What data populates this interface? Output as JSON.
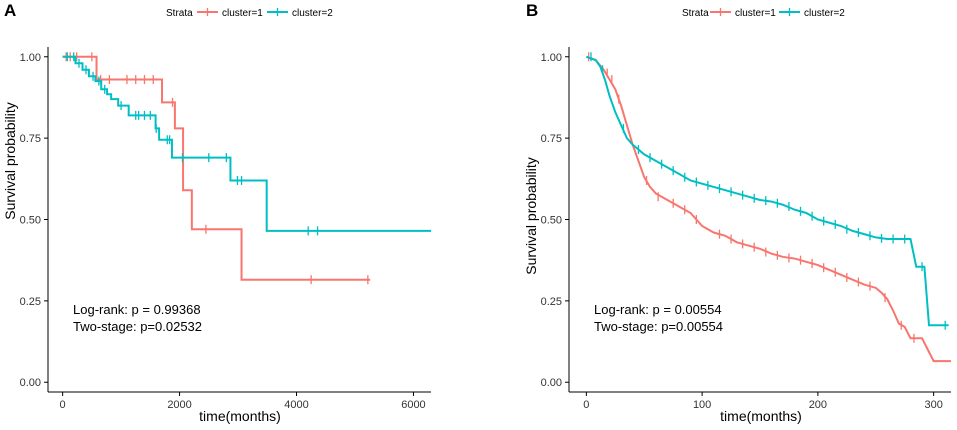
{
  "colors": {
    "cluster1": "#F8766D",
    "cluster2": "#00BFC4"
  },
  "chart_data": [
    {
      "type": "line",
      "subtype": "kaplan-meier",
      "panel_label": "A",
      "legend": {
        "title": "Strata",
        "entries": [
          "cluster=1",
          "cluster=2"
        ],
        "position": "top"
      },
      "xlabel": "time(months)",
      "ylabel": "Survival probability",
      "xlim": [
        -250,
        6300
      ],
      "ylim": [
        -0.03,
        1.03
      ],
      "xticks": [
        0,
        2000,
        4000,
        6000
      ],
      "xtick_labels": [
        "0",
        "2000",
        "4000",
        "6000"
      ],
      "yticks": [
        0,
        0.25,
        0.5,
        0.75,
        1
      ],
      "ytick_labels": [
        "0.00",
        "0.25",
        "0.50",
        "0.75",
        "1.00"
      ],
      "annotations": [
        "Log-rank: p = 0.99368",
        "Two-stage: p=0.02532"
      ],
      "series": [
        {
          "name": "cluster=1",
          "color_key": "cluster1",
          "steps": [
            [
              0,
              1.0
            ],
            [
              580,
              0.93
            ],
            [
              1700,
              0.86
            ],
            [
              1920,
              0.78
            ],
            [
              2060,
              0.59
            ],
            [
              2210,
              0.47
            ],
            [
              3060,
              0.315
            ],
            [
              5260,
              0.315
            ]
          ],
          "censored": [
            [
              60,
              1.0
            ],
            [
              130,
              1.0
            ],
            [
              240,
              1.0
            ],
            [
              500,
              1.0
            ],
            [
              650,
              0.93
            ],
            [
              800,
              0.93
            ],
            [
              1100,
              0.93
            ],
            [
              1250,
              0.93
            ],
            [
              1400,
              0.93
            ],
            [
              1550,
              0.93
            ],
            [
              1880,
              0.86
            ],
            [
              2450,
              0.47
            ],
            [
              4250,
              0.315
            ],
            [
              5220,
              0.315
            ]
          ]
        },
        {
          "name": "cluster=2",
          "color_key": "cluster2",
          "steps": [
            [
              0,
              1.0
            ],
            [
              220,
              0.98
            ],
            [
              340,
              0.96
            ],
            [
              450,
              0.94
            ],
            [
              560,
              0.925
            ],
            [
              660,
              0.9
            ],
            [
              760,
              0.885
            ],
            [
              830,
              0.87
            ],
            [
              950,
              0.85
            ],
            [
              1130,
              0.82
            ],
            [
              1590,
              0.78
            ],
            [
              1650,
              0.745
            ],
            [
              1870,
              0.69
            ],
            [
              2870,
              0.62
            ],
            [
              3490,
              0.465
            ],
            [
              6300,
              0.465
            ]
          ],
          "censored": [
            [
              80,
              1.0
            ],
            [
              190,
              1.0
            ],
            [
              280,
              0.98
            ],
            [
              400,
              0.96
            ],
            [
              520,
              0.94
            ],
            [
              620,
              0.925
            ],
            [
              720,
              0.9
            ],
            [
              1000,
              0.85
            ],
            [
              1250,
              0.82
            ],
            [
              1300,
              0.82
            ],
            [
              1400,
              0.82
            ],
            [
              1500,
              0.82
            ],
            [
              1600,
              0.78
            ],
            [
              1790,
              0.745
            ],
            [
              1830,
              0.745
            ],
            [
              2050,
              0.69
            ],
            [
              2500,
              0.69
            ],
            [
              2800,
              0.69
            ],
            [
              2990,
              0.62
            ],
            [
              3060,
              0.62
            ],
            [
              4200,
              0.465
            ],
            [
              4360,
              0.465
            ]
          ]
        }
      ]
    },
    {
      "type": "line",
      "subtype": "kaplan-meier",
      "panel_label": "B",
      "legend": {
        "title": "Strata",
        "entries": [
          "cluster=1",
          "cluster=2"
        ],
        "position": "top"
      },
      "xlabel": "time(months)",
      "ylabel": "Survival probability",
      "xlim": [
        -15,
        315
      ],
      "ylim": [
        -0.03,
        1.03
      ],
      "xticks": [
        0,
        100,
        200,
        300
      ],
      "xtick_labels": [
        "0",
        "100",
        "200",
        "300"
      ],
      "yticks": [
        0,
        0.25,
        0.5,
        0.75,
        1
      ],
      "ytick_labels": [
        "0.00",
        "0.25",
        "0.50",
        "0.75",
        "1.00"
      ],
      "annotations": [
        "Log-rank: p = 0.00554",
        "Two-stage: p=0.00554"
      ],
      "series": [
        {
          "name": "cluster=1",
          "color_key": "cluster1",
          "points": [
            [
              0,
              1.0
            ],
            [
              8,
              0.99
            ],
            [
              15,
              0.96
            ],
            [
              20,
              0.93
            ],
            [
              25,
              0.9
            ],
            [
              30,
              0.85
            ],
            [
              35,
              0.79
            ],
            [
              40,
              0.73
            ],
            [
              45,
              0.68
            ],
            [
              50,
              0.63
            ],
            [
              55,
              0.6
            ],
            [
              60,
              0.58
            ],
            [
              70,
              0.56
            ],
            [
              80,
              0.54
            ],
            [
              90,
              0.52
            ],
            [
              100,
              0.48
            ],
            [
              110,
              0.46
            ],
            [
              120,
              0.45
            ],
            [
              130,
              0.43
            ],
            [
              140,
              0.42
            ],
            [
              150,
              0.41
            ],
            [
              160,
              0.395
            ],
            [
              170,
              0.385
            ],
            [
              180,
              0.38
            ],
            [
              190,
              0.37
            ],
            [
              200,
              0.36
            ],
            [
              210,
              0.345
            ],
            [
              220,
              0.33
            ],
            [
              230,
              0.315
            ],
            [
              240,
              0.3
            ],
            [
              250,
              0.29
            ],
            [
              255,
              0.275
            ],
            [
              260,
              0.255
            ],
            [
              265,
              0.22
            ],
            [
              270,
              0.18
            ],
            [
              275,
              0.17
            ],
            [
              280,
              0.135
            ],
            [
              290,
              0.135
            ],
            [
              300,
              0.065
            ],
            [
              315,
              0.065
            ]
          ],
          "censored": [
            [
              2,
              1.0
            ],
            [
              18,
              0.95
            ],
            [
              22,
              0.93
            ],
            [
              28,
              0.87
            ],
            [
              52,
              0.62
            ],
            [
              62,
              0.57
            ],
            [
              75,
              0.55
            ],
            [
              85,
              0.53
            ],
            [
              95,
              0.5
            ],
            [
              115,
              0.455
            ],
            [
              125,
              0.44
            ],
            [
              135,
              0.425
            ],
            [
              145,
              0.415
            ],
            [
              155,
              0.4
            ],
            [
              165,
              0.39
            ],
            [
              175,
              0.382
            ],
            [
              185,
              0.375
            ],
            [
              195,
              0.365
            ],
            [
              205,
              0.352
            ],
            [
              215,
              0.338
            ],
            [
              225,
              0.322
            ],
            [
              235,
              0.308
            ],
            [
              245,
              0.295
            ],
            [
              258,
              0.26
            ],
            [
              272,
              0.175
            ],
            [
              283,
              0.135
            ]
          ]
        },
        {
          "name": "cluster=2",
          "color_key": "cluster2",
          "points": [
            [
              0,
              1.0
            ],
            [
              8,
              0.99
            ],
            [
              12,
              0.97
            ],
            [
              16,
              0.93
            ],
            [
              20,
              0.88
            ],
            [
              25,
              0.83
            ],
            [
              30,
              0.79
            ],
            [
              35,
              0.75
            ],
            [
              40,
              0.73
            ],
            [
              50,
              0.7
            ],
            [
              60,
              0.68
            ],
            [
              70,
              0.66
            ],
            [
              80,
              0.64
            ],
            [
              90,
              0.62
            ],
            [
              100,
              0.61
            ],
            [
              110,
              0.6
            ],
            [
              120,
              0.59
            ],
            [
              130,
              0.58
            ],
            [
              140,
              0.57
            ],
            [
              150,
              0.56
            ],
            [
              160,
              0.555
            ],
            [
              170,
              0.545
            ],
            [
              180,
              0.53
            ],
            [
              190,
              0.52
            ],
            [
              200,
              0.5
            ],
            [
              210,
              0.49
            ],
            [
              220,
              0.48
            ],
            [
              230,
              0.465
            ],
            [
              240,
              0.455
            ],
            [
              250,
              0.445
            ],
            [
              260,
              0.44
            ],
            [
              280,
              0.44
            ],
            [
              285,
              0.355
            ],
            [
              292,
              0.355
            ],
            [
              296,
              0.175
            ],
            [
              313,
              0.175
            ]
          ],
          "censored": [
            [
              4,
              1.0
            ],
            [
              14,
              0.96
            ],
            [
              32,
              0.78
            ],
            [
              45,
              0.715
            ],
            [
              55,
              0.69
            ],
            [
              65,
              0.67
            ],
            [
              75,
              0.65
            ],
            [
              85,
              0.63
            ],
            [
              95,
              0.615
            ],
            [
              105,
              0.605
            ],
            [
              115,
              0.595
            ],
            [
              125,
              0.585
            ],
            [
              135,
              0.575
            ],
            [
              145,
              0.565
            ],
            [
              155,
              0.558
            ],
            [
              165,
              0.55
            ],
            [
              175,
              0.54
            ],
            [
              185,
              0.525
            ],
            [
              195,
              0.51
            ],
            [
              205,
              0.495
            ],
            [
              215,
              0.485
            ],
            [
              225,
              0.47
            ],
            [
              235,
              0.46
            ],
            [
              245,
              0.45
            ],
            [
              255,
              0.442
            ],
            [
              265,
              0.44
            ],
            [
              275,
              0.44
            ],
            [
              290,
              0.355
            ],
            [
              310,
              0.175
            ]
          ]
        }
      ]
    }
  ]
}
